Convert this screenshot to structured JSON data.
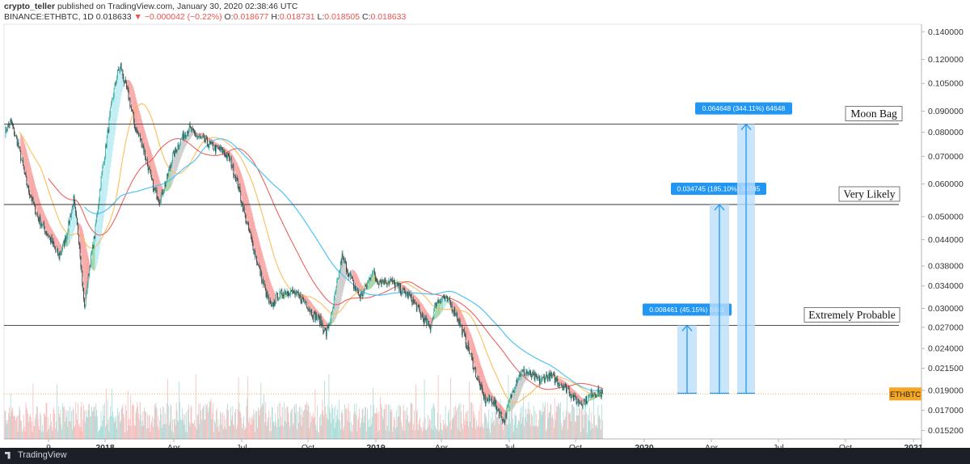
{
  "header": {
    "author": "crypto_teller",
    "published_text": "published on TradingView.com, January 30, 2020 02:38:46 UTC",
    "symbol": "BINANCE:ETHBTC, 1D",
    "last": "0.018633",
    "change": "−0.000042 (−0.22%)",
    "o_label": "O:",
    "o_value": "0.018677",
    "h_label": "H:",
    "h_value": "0.018731",
    "l_label": "L:",
    "l_value": "0.018505",
    "c_label": "C:",
    "c_value": "0.018633"
  },
  "footer": {
    "logo_text": "TradingView"
  },
  "colors": {
    "up": "#26a69a",
    "down": "#ef5350",
    "orange": "#f7931a",
    "measure_blue": "#2196f3",
    "measure_fill": "#bbdefb",
    "label_bg": "#2196f3",
    "price_badge": "#f5a623",
    "ma_red": "#ef5350",
    "ma_blue": "#4fc3f7",
    "ma_orange": "#ffb74d",
    "ribbon_green": "#4caf50",
    "ribbon_cyan": "#80deea",
    "ribbon_gray": "#9e9e9e"
  },
  "chart_data": {
    "type": "candlestick",
    "scale": "log",
    "ylim": [
      0.0145,
      0.146
    ],
    "y_ticks": [
      "0.140000",
      "0.120000",
      "0.105000",
      "0.090000",
      "0.080000",
      "0.070000",
      "0.060000",
      "0.050000",
      "0.044000",
      "0.038000",
      "0.034000",
      "0.030000",
      "0.027000",
      "0.024000",
      "0.021500",
      "0.019000",
      "0.017000",
      "0.015200"
    ],
    "x_ticks": [
      "9",
      "2018",
      "Apr",
      "Jul",
      "Oct",
      "2019",
      "Apr",
      "Jul",
      "Oct",
      "2020",
      "Apr",
      "Jul",
      "Oct",
      "2021"
    ],
    "current_price_label": "ETHBTC",
    "current_price": 0.018633,
    "price_path": [
      [
        0,
        0.08
      ],
      [
        8,
        0.085
      ],
      [
        18,
        0.075
      ],
      [
        30,
        0.06
      ],
      [
        45,
        0.05
      ],
      [
        60,
        0.045
      ],
      [
        75,
        0.04
      ],
      [
        85,
        0.045
      ],
      [
        95,
        0.055
      ],
      [
        103,
        0.043
      ],
      [
        110,
        0.03
      ],
      [
        117,
        0.038
      ],
      [
        124,
        0.045
      ],
      [
        132,
        0.06
      ],
      [
        140,
        0.075
      ],
      [
        148,
        0.095
      ],
      [
        155,
        0.11
      ],
      [
        160,
        0.116
      ],
      [
        165,
        0.106
      ],
      [
        172,
        0.096
      ],
      [
        180,
        0.082
      ],
      [
        190,
        0.075
      ],
      [
        198,
        0.066
      ],
      [
        206,
        0.058
      ],
      [
        214,
        0.055
      ],
      [
        222,
        0.06
      ],
      [
        232,
        0.07
      ],
      [
        245,
        0.078
      ],
      [
        255,
        0.082
      ],
      [
        262,
        0.079
      ],
      [
        272,
        0.077
      ],
      [
        282,
        0.075
      ],
      [
        292,
        0.073
      ],
      [
        302,
        0.072
      ],
      [
        312,
        0.068
      ],
      [
        322,
        0.06
      ],
      [
        332,
        0.05
      ],
      [
        342,
        0.043
      ],
      [
        352,
        0.037
      ],
      [
        360,
        0.033
      ],
      [
        368,
        0.03
      ],
      [
        376,
        0.032
      ],
      [
        386,
        0.033
      ],
      [
        396,
        0.033
      ],
      [
        406,
        0.032
      ],
      [
        416,
        0.031
      ],
      [
        426,
        0.029
      ],
      [
        436,
        0.028
      ],
      [
        444,
        0.026
      ],
      [
        452,
        0.029
      ],
      [
        460,
        0.035
      ],
      [
        466,
        0.04
      ],
      [
        474,
        0.037
      ],
      [
        482,
        0.034
      ],
      [
        492,
        0.032
      ],
      [
        500,
        0.034
      ],
      [
        508,
        0.037
      ],
      [
        514,
        0.035
      ],
      [
        522,
        0.035
      ],
      [
        532,
        0.035
      ],
      [
        542,
        0.034
      ],
      [
        550,
        0.033
      ],
      [
        560,
        0.032
      ],
      [
        570,
        0.03
      ],
      [
        580,
        0.028
      ],
      [
        588,
        0.027
      ],
      [
        596,
        0.031
      ],
      [
        606,
        0.032
      ],
      [
        614,
        0.031
      ],
      [
        624,
        0.029
      ],
      [
        634,
        0.026
      ],
      [
        644,
        0.023
      ],
      [
        654,
        0.02
      ],
      [
        664,
        0.018
      ],
      [
        674,
        0.018
      ],
      [
        682,
        0.017
      ],
      [
        690,
        0.016
      ],
      [
        698,
        0.018
      ],
      [
        706,
        0.02
      ],
      [
        714,
        0.021
      ],
      [
        722,
        0.021
      ],
      [
        730,
        0.0205
      ],
      [
        740,
        0.02
      ],
      [
        748,
        0.0205
      ],
      [
        756,
        0.0205
      ],
      [
        764,
        0.02
      ],
      [
        772,
        0.0195
      ],
      [
        780,
        0.019
      ],
      [
        788,
        0.018
      ],
      [
        796,
        0.0178
      ],
      [
        804,
        0.018
      ],
      [
        812,
        0.0188
      ],
      [
        820,
        0.0188
      ],
      [
        826,
        0.018633
      ]
    ],
    "levels": [
      {
        "name": "Moon Bag",
        "price": 0.0837
      },
      {
        "name": "Very Likely",
        "price": 0.0535
      },
      {
        "name": "Extremely Probable",
        "price": 0.0273
      }
    ],
    "measures": [
      {
        "label": "0.008461 (45.15%) 8461",
        "target": 0.0273
      },
      {
        "label": "0.034745 (185.10%) 34745",
        "target": 0.0535
      },
      {
        "label": "0.064648 (344.11%) 64648",
        "target": 0.0837
      }
    ],
    "measure_base": 0.0187
  }
}
